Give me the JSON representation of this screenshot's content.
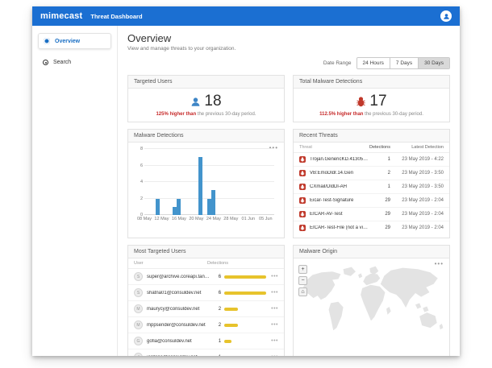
{
  "header": {
    "logo": "mimecast",
    "title": "Threat Dashboard"
  },
  "sidebar": {
    "items": [
      {
        "label": "Overview",
        "active": true
      },
      {
        "label": "Search",
        "active": false
      }
    ]
  },
  "page": {
    "title": "Overview",
    "subtitle": "View and manage threats to your organization."
  },
  "date_range": {
    "label": "Date Range",
    "options": [
      "24 Hours",
      "7 Days",
      "30 Days"
    ],
    "selected": "30 Days"
  },
  "stats": {
    "targeted_users": {
      "title": "Targeted Users",
      "value": "18",
      "delta_bold": "125% higher than",
      "delta_rest": " the previous 30-day period."
    },
    "total_malware": {
      "title": "Total Malware Detections",
      "value": "17",
      "delta_bold": "112.5% higher than",
      "delta_rest": " the previous 30-day period."
    }
  },
  "chart_data": {
    "type": "bar",
    "title": "Malware Detections",
    "xlabel": "",
    "ylabel": "",
    "ylim": [
      0,
      8
    ],
    "y_ticks": [
      0,
      2,
      4,
      6,
      8
    ],
    "x_domain_days": 30,
    "x_ticks": [
      {
        "label": "08 May",
        "day": 0
      },
      {
        "label": "12 May",
        "day": 4
      },
      {
        "label": "16 May",
        "day": 8
      },
      {
        "label": "20 May",
        "day": 12
      },
      {
        "label": "24 May",
        "day": 16
      },
      {
        "label": "28 May",
        "day": 20
      },
      {
        "label": "01 Jun",
        "day": 24
      },
      {
        "label": "05 Jun",
        "day": 28
      }
    ],
    "points": [
      {
        "date": "11 May",
        "day": 3,
        "value": 2
      },
      {
        "date": "15 May",
        "day": 7,
        "value": 1
      },
      {
        "date": "16 May",
        "day": 8,
        "value": 2
      },
      {
        "date": "21 May",
        "day": 13,
        "value": 7
      },
      {
        "date": "23 May",
        "day": 15,
        "value": 2
      },
      {
        "date": "24 May",
        "day": 16,
        "value": 3
      }
    ],
    "grid": true,
    "legend": false,
    "bar_color": "#4394cc"
  },
  "recent_threats": {
    "title": "Recent Threats",
    "columns": [
      "Threat",
      "Detections",
      "Latest Detection"
    ],
    "rows": [
      {
        "threat": "Trojan.GenericKD.41305303",
        "detections": "1",
        "latest": "23 May 2019 - 4:22"
      },
      {
        "threat": "VB:EmoDldr.14.Gen",
        "detections": "2",
        "latest": "23 May 2019 - 3:50"
      },
      {
        "threat": "CXmail/DldDl-AH",
        "detections": "1",
        "latest": "23 May 2019 - 3:50"
      },
      {
        "threat": "Eicar-Test-Signature",
        "detections": "29",
        "latest": "23 May 2019 - 2:04"
      },
      {
        "threat": "EICAR-AV-Test",
        "detections": "29",
        "latest": "23 May 2019 - 2:04"
      },
      {
        "threat": "EICAR-Test-File (not a virus)",
        "detections": "29",
        "latest": "23 May 2019 - 2:04"
      }
    ]
  },
  "most_targeted": {
    "title": "Most Targeted Users",
    "columns": [
      "User",
      "Detections"
    ],
    "rows": [
      {
        "initial": "S",
        "email": "super@archive.coreapi.tandt.net",
        "detections": 6
      },
      {
        "initial": "S",
        "email": "shatna01@consuldev.net",
        "detections": 6
      },
      {
        "initial": "M",
        "email": "maurycy@consuldev.net",
        "detections": 2
      },
      {
        "initial": "M",
        "email": "mppsender@consuldev.net",
        "detections": 2
      },
      {
        "initial": "G",
        "email": "gofia@consuldev.net",
        "detections": 1
      },
      {
        "initial": "J",
        "email": "jordano@consuldev.net",
        "detections": 1
      }
    ]
  },
  "malware_origin": {
    "title": "Malware Origin",
    "controls": [
      {
        "name": "zoom-in",
        "glyph": "+"
      },
      {
        "name": "zoom-out",
        "glyph": "−"
      },
      {
        "name": "home",
        "glyph": "⌂"
      }
    ]
  },
  "colors": {
    "header_blue": "#1b6fd2",
    "accent_blue": "#1a6fc4",
    "bar_blue": "#4394cc",
    "alert_red": "#c62828",
    "badge_red": "#c0392b",
    "user_bar_yellow": "#e7c32c",
    "map_land": "#e3e3e3"
  },
  "menu_glyph": "•••"
}
